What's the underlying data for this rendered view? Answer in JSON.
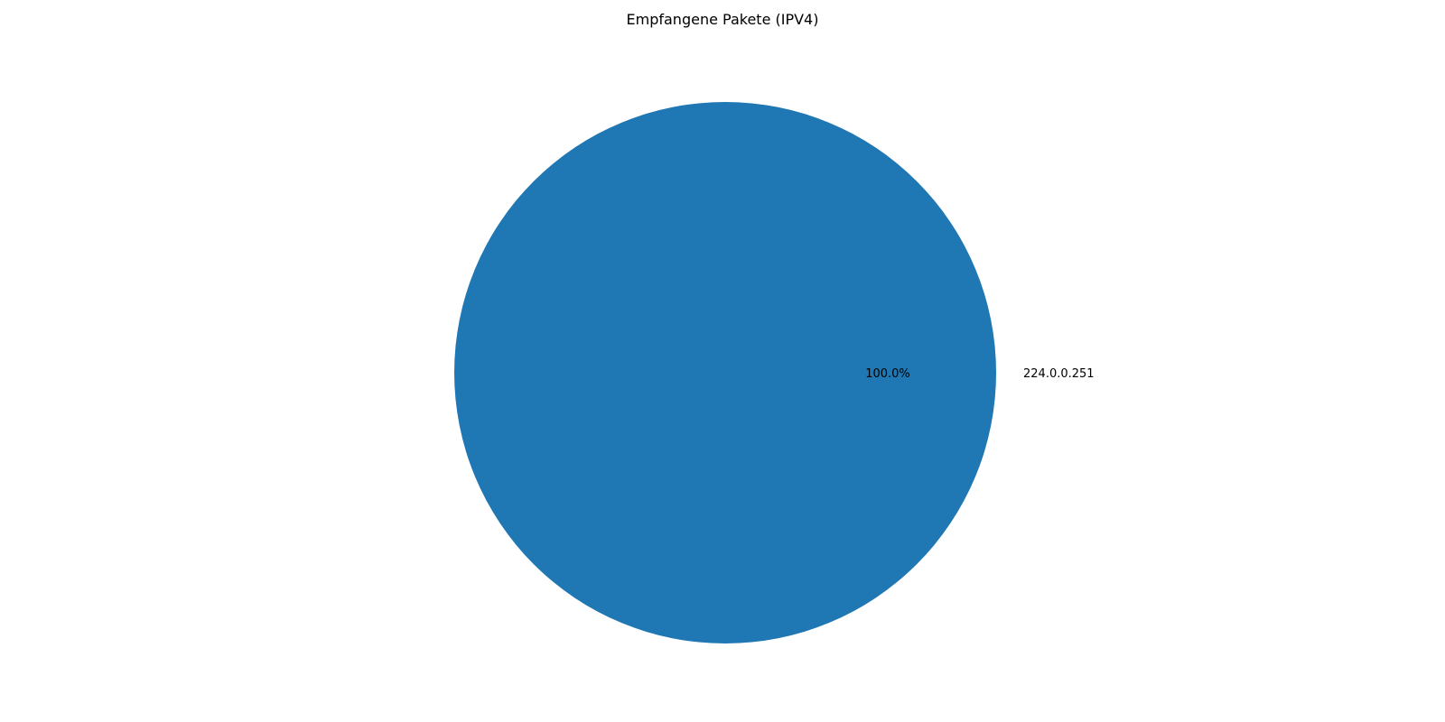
{
  "chart_data": {
    "type": "pie",
    "title": "Empfangene Pakete (IPV4)",
    "labels": [
      "224.0.0.251"
    ],
    "values": [
      100.0
    ],
    "percent_labels": [
      "100.0%"
    ],
    "colors": [
      "#1f77b4"
    ],
    "legend": "none"
  }
}
